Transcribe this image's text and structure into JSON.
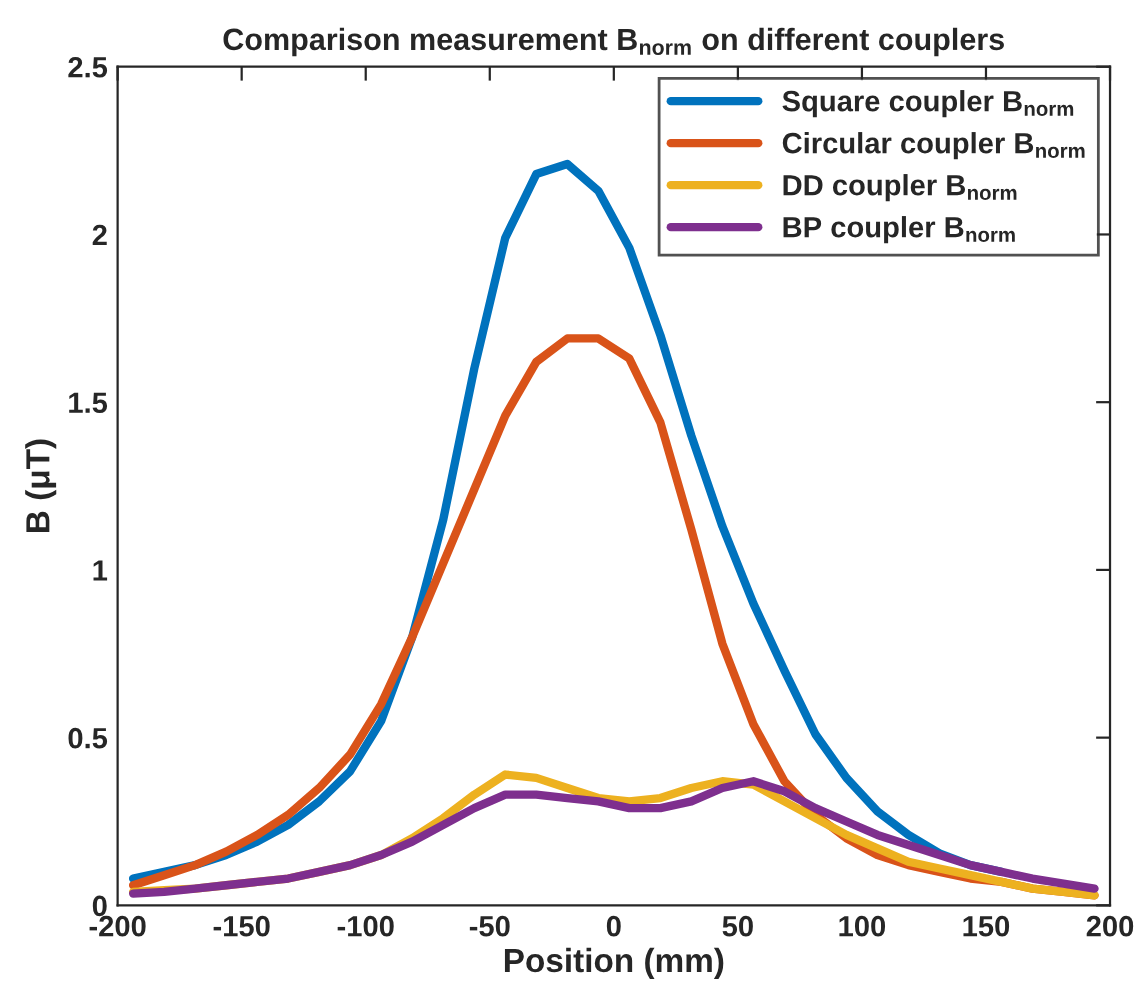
{
  "chart_data": {
    "type": "line",
    "title": "Comparison measurement B$_{norm}$ on different couplers",
    "xlabel": "Position (mm)",
    "ylabel": "B (μT)",
    "x": [
      -193.75,
      -181.25,
      -168.75,
      -156.25,
      -143.75,
      -131.25,
      -118.75,
      -106.25,
      -93.75,
      -81.25,
      -68.75,
      -56.25,
      -43.75,
      -31.25,
      -18.75,
      -6.25,
      6.25,
      18.75,
      31.25,
      43.75,
      56.25,
      68.75,
      81.25,
      93.75,
      106.25,
      118.75,
      131.25,
      143.75,
      156.25,
      168.75,
      181.25,
      193.75
    ],
    "series": [
      {
        "name": "Square coupler B$_{norm}$",
        "color": "#0072bd",
        "values": [
          0.08,
          0.1,
          0.12,
          0.15,
          0.19,
          0.24,
          0.31,
          0.4,
          0.55,
          0.8,
          1.15,
          1.6,
          1.99,
          2.18,
          2.21,
          2.13,
          1.96,
          1.7,
          1.4,
          1.13,
          0.9,
          0.7,
          0.51,
          0.38,
          0.28,
          0.21,
          0.155,
          0.12,
          0.1,
          null,
          null,
          null
        ]
      },
      {
        "name": "Circular coupler B$_{norm}$",
        "color": "#d95319",
        "values": [
          0.06,
          0.09,
          0.12,
          0.16,
          0.21,
          0.27,
          0.35,
          0.45,
          0.6,
          0.8,
          1.02,
          1.24,
          1.46,
          1.62,
          1.69,
          1.69,
          1.63,
          1.44,
          1.12,
          0.78,
          0.54,
          0.37,
          0.27,
          0.2,
          0.15,
          0.12,
          0.1,
          0.08,
          0.07,
          0.05,
          0.04,
          0.03
        ]
      },
      {
        "name": "DD coupler B$_{norm}$",
        "color": "#edb120",
        "values": [
          0.04,
          0.045,
          0.05,
          0.06,
          0.07,
          0.08,
          0.1,
          0.12,
          0.15,
          0.2,
          0.26,
          0.33,
          0.39,
          0.38,
          0.35,
          0.32,
          0.31,
          0.32,
          0.35,
          0.37,
          0.36,
          0.31,
          0.26,
          0.21,
          0.17,
          0.13,
          0.11,
          0.09,
          0.07,
          0.05,
          0.04,
          0.03
        ]
      },
      {
        "name": "BP coupler B$_{norm}$",
        "color": "#7e2f8e",
        "values": [
          0.035,
          0.04,
          0.05,
          0.06,
          0.07,
          0.08,
          0.1,
          0.12,
          0.15,
          0.19,
          0.24,
          0.29,
          0.33,
          0.33,
          0.32,
          0.31,
          0.29,
          0.29,
          0.31,
          0.35,
          0.37,
          0.34,
          0.29,
          0.25,
          0.21,
          0.18,
          0.15,
          0.12,
          0.1,
          0.08,
          0.065,
          0.05
        ]
      }
    ],
    "xlim": [
      -200,
      200
    ],
    "xticks": [
      -200,
      -150,
      -100,
      -50,
      0,
      50,
      100,
      150,
      200
    ],
    "ylim": [
      0,
      2.5
    ],
    "yticks": [
      0,
      0.5,
      1,
      1.5,
      2,
      2.5
    ],
    "grid": false,
    "legend": "top right",
    "line_style": "solid",
    "marker": "none"
  }
}
